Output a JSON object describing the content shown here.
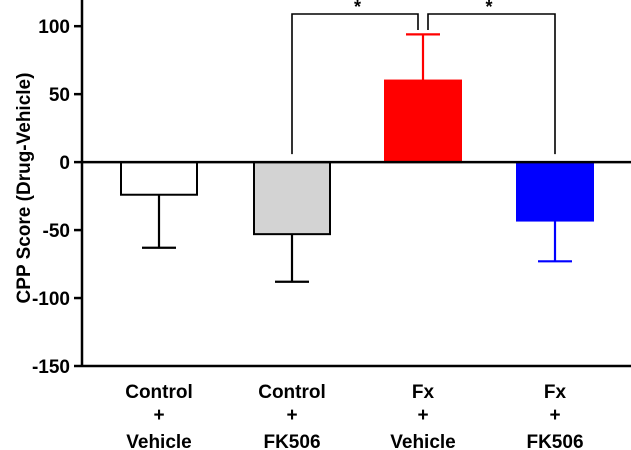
{
  "chart_data": {
    "type": "bar",
    "title": "",
    "xlabel": "",
    "ylabel": "CPP Score (Drug-Vehicle)",
    "ylim": [
      -150,
      120
    ],
    "yticks": [
      -150,
      -100,
      -50,
      0,
      50,
      100
    ],
    "categories": [
      [
        "Control",
        "+",
        "Vehicle"
      ],
      [
        "Control",
        "+",
        "FK506"
      ],
      [
        "Fx",
        "+",
        "Vehicle"
      ],
      [
        "Fx",
        "+",
        "FK506"
      ]
    ],
    "values": [
      -24,
      -53,
      60,
      -43
    ],
    "error_bars": [
      39,
      35,
      34,
      30
    ],
    "bar_fill_colors": [
      "#ffffff",
      "#d3d3d3",
      "#ff0000",
      "#0000ff"
    ],
    "bar_edge_colors": [
      "#000000",
      "#000000",
      "#ff0000",
      "#0000ff"
    ],
    "error_bar_colors": [
      "#000000",
      "#000000",
      "#ff0000",
      "#0000ff"
    ],
    "grid": false,
    "legend": "none",
    "significance": [
      {
        "from": 1,
        "to": 2,
        "label": "*"
      },
      {
        "from": 2,
        "to": 3,
        "label": "*"
      }
    ]
  }
}
